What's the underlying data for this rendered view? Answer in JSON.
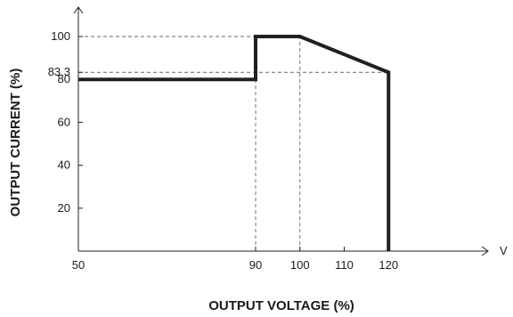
{
  "chart_data": {
    "type": "line",
    "title": "",
    "xlabel": "OUTPUT VOLTAGE (%)",
    "ylabel": "OUTPUT CURRENT (%)",
    "x_unit_label": "V",
    "xlim": [
      50,
      125
    ],
    "ylim": [
      0,
      100
    ],
    "x_ticks": [
      50,
      90,
      100,
      110,
      120
    ],
    "x_tick_labels": [
      "50",
      "90",
      "100",
      "110",
      "120"
    ],
    "y_ticks": [
      20,
      40,
      60,
      80,
      83.3,
      100
    ],
    "y_tick_labels": [
      "20",
      "40",
      "60",
      "80",
      "83.3",
      "100"
    ],
    "grid": false,
    "reference_lines": [
      {
        "orientation": "horizontal",
        "value": 100,
        "x_from": 50,
        "x_to": 100
      },
      {
        "orientation": "horizontal",
        "value": 83.3,
        "x_from": 50,
        "x_to": 120
      },
      {
        "orientation": "vertical",
        "value": 90,
        "y_from": 0,
        "y_to": 100
      },
      {
        "orientation": "vertical",
        "value": 100,
        "y_from": 0,
        "y_to": 100
      }
    ],
    "series": [
      {
        "x": [
          50,
          90,
          90,
          100,
          120,
          120
        ],
        "y": [
          80,
          80,
          100,
          100,
          83.3,
          0
        ]
      }
    ],
    "colors": {
      "line": "#231f20",
      "axis": "#231f20",
      "reference": "#666666"
    }
  }
}
